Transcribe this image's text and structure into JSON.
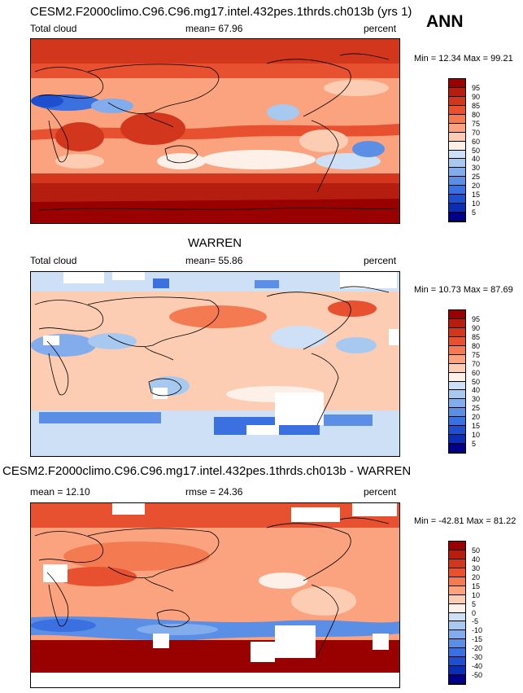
{
  "season": "ANN",
  "panels": [
    {
      "title": "CESM2.F2000climo.C96.C96.mg17.intel.432pes.1thrds.ch013b (yrs 1)",
      "left_label": "Total cloud",
      "center_label": "mean=  67.96",
      "units": "percent",
      "minmax": "Min =  12.34 Max =  99.21",
      "levels": [
        "95",
        "90",
        "85",
        "80",
        "75",
        "70",
        "60",
        "50",
        "40",
        "30",
        "25",
        "20",
        "15",
        "10",
        "5"
      ],
      "colors": [
        "#990000",
        "#b51d0f",
        "#d2361c",
        "#e8512f",
        "#f47a52",
        "#fba37f",
        "#fccdb2",
        "#fdf0e8",
        "#cde0f5",
        "#a7c9f0",
        "#82acec",
        "#5b8fe6",
        "#3a70df",
        "#1d4fcf",
        "#0b2eb3",
        "#00008a"
      ]
    },
    {
      "title": "WARREN",
      "left_label": "Total cloud",
      "center_label": "mean=  55.86",
      "units": "percent",
      "minmax": "Min =  10.73 Max =  87.69",
      "levels": [
        "95",
        "90",
        "85",
        "80",
        "75",
        "70",
        "60",
        "50",
        "40",
        "30",
        "25",
        "20",
        "15",
        "10",
        "5"
      ],
      "colors": [
        "#990000",
        "#b51d0f",
        "#d2361c",
        "#e8512f",
        "#f47a52",
        "#fba37f",
        "#fccdb2",
        "#fdf0e8",
        "#cde0f5",
        "#a7c9f0",
        "#82acec",
        "#5b8fe6",
        "#3a70df",
        "#1d4fcf",
        "#0b2eb3",
        "#00008a"
      ]
    },
    {
      "title": "CESM2.F2000climo.C96.C96.mg17.intel.432pes.1thrds.ch013b - WARREN",
      "left_label": "mean =  12.10",
      "center_label": "rmse =  24.36",
      "units": "percent",
      "minmax": "Min = -42.81 Max =  81.22",
      "levels": [
        "50",
        "40",
        "30",
        "20",
        "15",
        "10",
        "5",
        "0",
        "-5",
        "-10",
        "-15",
        "-20",
        "-30",
        "-40",
        "-50"
      ],
      "colors": [
        "#990000",
        "#b51d0f",
        "#d2361c",
        "#e8512f",
        "#f47a52",
        "#fba37f",
        "#fccdb2",
        "#fdf0e8",
        "#cde0f5",
        "#a7c9f0",
        "#82acec",
        "#5b8fe6",
        "#3a70df",
        "#1d4fcf",
        "#0b2eb3",
        "#00008a"
      ]
    }
  ]
}
